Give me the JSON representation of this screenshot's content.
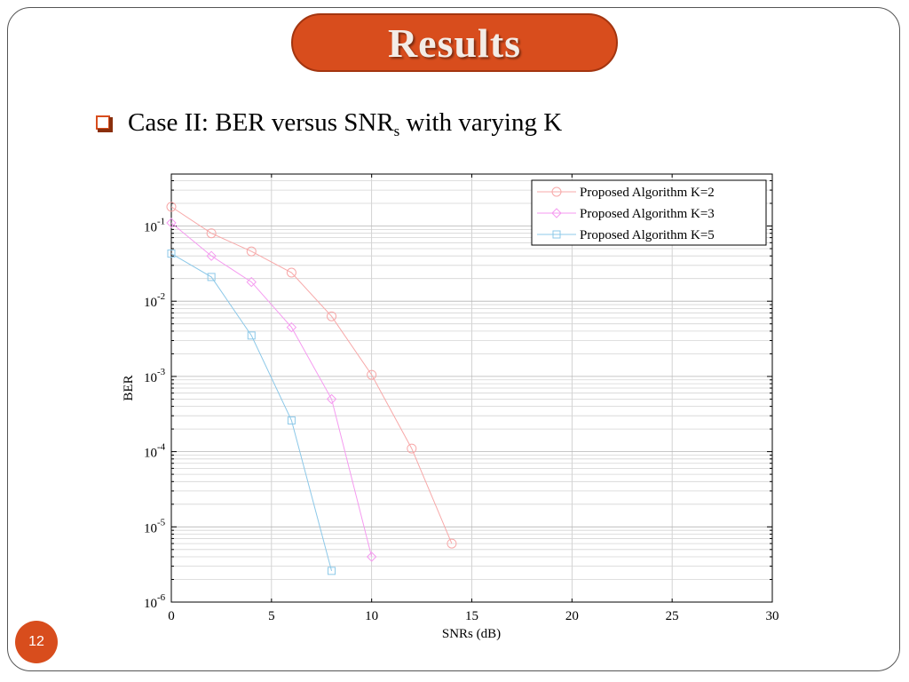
{
  "slide": {
    "title": "Results",
    "bullet": {
      "prefix": "Case II: BER versus SNR",
      "subscript": "s",
      "suffix": " with varying K"
    },
    "page_number": "12",
    "accent_color": "#d84d1d"
  },
  "chart_data": {
    "type": "line",
    "xlabel": "SNRs (dB)",
    "ylabel": "BER",
    "xlim": [
      0,
      30
    ],
    "ylim": [
      1e-06,
      0.5
    ],
    "yscale": "log",
    "grid": true,
    "legend_position": "top-right",
    "x_ticks": [
      "0",
      "5",
      "10",
      "15",
      "20",
      "25",
      "30"
    ],
    "y_ticks": [
      {
        "base": "10",
        "exp": "-1"
      },
      {
        "base": "10",
        "exp": "-2"
      },
      {
        "base": "10",
        "exp": "-3"
      },
      {
        "base": "10",
        "exp": "-4"
      },
      {
        "base": "10",
        "exp": "-5"
      },
      {
        "base": "10",
        "exp": "-6"
      }
    ],
    "series": [
      {
        "name": "Proposed Algorithm K=2",
        "marker": "circle",
        "color": "#f7a8a8",
        "x": [
          0,
          2,
          4,
          6,
          8,
          10,
          12,
          14
        ],
        "y": [
          0.18,
          0.08,
          0.046,
          0.024,
          0.0063,
          0.00105,
          0.00011,
          6e-06
        ]
      },
      {
        "name": "Proposed Algorithm K=3",
        "marker": "diamond",
        "color": "#f59af0",
        "x": [
          0,
          2,
          4,
          6,
          8,
          10
        ],
        "y": [
          0.11,
          0.04,
          0.018,
          0.0045,
          0.0005,
          4e-06
        ]
      },
      {
        "name": "Proposed Algorithm K=5",
        "marker": "square",
        "color": "#8cc8e8",
        "x": [
          0,
          2,
          4,
          6,
          8
        ],
        "y": [
          0.043,
          0.021,
          0.0035,
          0.00026,
          2.6e-06
        ]
      }
    ]
  }
}
